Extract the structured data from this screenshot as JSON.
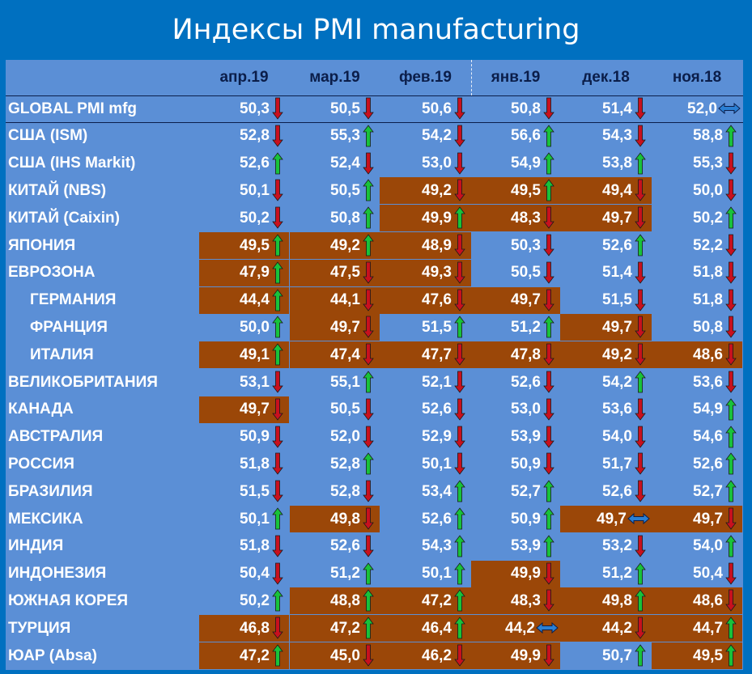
{
  "title": "Индексы PMI manufacturing",
  "colors": {
    "background": "#0070c0",
    "panel": "#5b8fd6",
    "below_50_cell": "#9b4708",
    "arrow_up": "#18c23a",
    "arrow_down": "#c8101e",
    "arrow_flat": "#2a7fd4"
  },
  "chart_data": {
    "type": "table",
    "columns": [
      "апр.19",
      "мар.19",
      "фев.19",
      "янв.19",
      "дек.18",
      "ноя.18"
    ],
    "rows": [
      {
        "label": "GLOBAL PMI mfg",
        "indent": false,
        "values": [
          "50,3",
          "50,5",
          "50,6",
          "50,8",
          "51,4",
          "52,0"
        ],
        "trend": [
          "down",
          "down",
          "down",
          "down",
          "down",
          "flat"
        ],
        "below50": [
          false,
          false,
          false,
          false,
          false,
          false
        ]
      },
      {
        "label": "США (ISM)",
        "indent": false,
        "values": [
          "52,8",
          "55,3",
          "54,2",
          "56,6",
          "54,3",
          "58,8"
        ],
        "trend": [
          "down",
          "up",
          "down",
          "up",
          "down",
          "up"
        ],
        "below50": [
          false,
          false,
          false,
          false,
          false,
          false
        ]
      },
      {
        "label": "США (IHS Markit)",
        "indent": false,
        "values": [
          "52,6",
          "52,4",
          "53,0",
          "54,9",
          "53,8",
          "55,3"
        ],
        "trend": [
          "up",
          "down",
          "down",
          "up",
          "up",
          "down"
        ],
        "below50": [
          false,
          false,
          false,
          false,
          false,
          false
        ]
      },
      {
        "label": "КИТАЙ (NBS)",
        "indent": false,
        "values": [
          "50,1",
          "50,5",
          "49,2",
          "49,5",
          "49,4",
          "50,0"
        ],
        "trend": [
          "down",
          "up",
          "down",
          "up",
          "down",
          "down"
        ],
        "below50": [
          false,
          false,
          true,
          true,
          true,
          false
        ]
      },
      {
        "label": "КИТАЙ (Caixin)",
        "indent": false,
        "values": [
          "50,2",
          "50,8",
          "49,9",
          "48,3",
          "49,7",
          "50,2"
        ],
        "trend": [
          "down",
          "up",
          "up",
          "down",
          "down",
          "up"
        ],
        "below50": [
          false,
          false,
          true,
          true,
          true,
          false
        ]
      },
      {
        "label": "ЯПОНИЯ",
        "indent": false,
        "values": [
          "49,5",
          "49,2",
          "48,9",
          "50,3",
          "52,6",
          "52,2"
        ],
        "trend": [
          "up",
          "up",
          "down",
          "down",
          "up",
          "down"
        ],
        "below50": [
          true,
          true,
          true,
          false,
          false,
          false
        ]
      },
      {
        "label": "ЕВРОЗОНА",
        "indent": false,
        "values": [
          "47,9",
          "47,5",
          "49,3",
          "50,5",
          "51,4",
          "51,8"
        ],
        "trend": [
          "up",
          "down",
          "down",
          "down",
          "down",
          "down"
        ],
        "below50": [
          true,
          true,
          true,
          false,
          false,
          false
        ]
      },
      {
        "label": "ГЕРМАНИЯ",
        "indent": true,
        "values": [
          "44,4",
          "44,1",
          "47,6",
          "49,7",
          "51,5",
          "51,8"
        ],
        "trend": [
          "up",
          "down",
          "down",
          "down",
          "down",
          "down"
        ],
        "below50": [
          true,
          true,
          true,
          true,
          false,
          false
        ]
      },
      {
        "label": "ФРАНЦИЯ",
        "indent": true,
        "values": [
          "50,0",
          "49,7",
          "51,5",
          "51,2",
          "49,7",
          "50,8"
        ],
        "trend": [
          "up",
          "down",
          "up",
          "up",
          "down",
          "down"
        ],
        "below50": [
          false,
          true,
          false,
          false,
          true,
          false
        ]
      },
      {
        "label": "ИТАЛИЯ",
        "indent": true,
        "values": [
          "49,1",
          "47,4",
          "47,7",
          "47,8",
          "49,2",
          "48,6"
        ],
        "trend": [
          "up",
          "down",
          "down",
          "down",
          "down",
          "down"
        ],
        "below50": [
          true,
          true,
          true,
          true,
          true,
          true
        ]
      },
      {
        "label": "ВЕЛИКОБРИТАНИЯ",
        "indent": false,
        "values": [
          "53,1",
          "55,1",
          "52,1",
          "52,6",
          "54,2",
          "53,6"
        ],
        "trend": [
          "down",
          "up",
          "down",
          "down",
          "up",
          "down"
        ],
        "below50": [
          false,
          false,
          false,
          false,
          false,
          false
        ]
      },
      {
        "label": "КАНАДА",
        "indent": false,
        "values": [
          "49,7",
          "50,5",
          "52,6",
          "53,0",
          "53,6",
          "54,9"
        ],
        "trend": [
          "down",
          "down",
          "down",
          "down",
          "down",
          "up"
        ],
        "below50": [
          true,
          false,
          false,
          false,
          false,
          false
        ]
      },
      {
        "label": "АВСТРАЛИЯ",
        "indent": false,
        "values": [
          "50,9",
          "52,0",
          "52,9",
          "53,9",
          "54,0",
          "54,6"
        ],
        "trend": [
          "down",
          "down",
          "down",
          "down",
          "down",
          "up"
        ],
        "below50": [
          false,
          false,
          false,
          false,
          false,
          false
        ]
      },
      {
        "label": "РОССИЯ",
        "indent": false,
        "values": [
          "51,8",
          "52,8",
          "50,1",
          "50,9",
          "51,7",
          "52,6"
        ],
        "trend": [
          "down",
          "up",
          "down",
          "down",
          "down",
          "up"
        ],
        "below50": [
          false,
          false,
          false,
          false,
          false,
          false
        ]
      },
      {
        "label": "БРАЗИЛИЯ",
        "indent": false,
        "values": [
          "51,5",
          "52,8",
          "53,4",
          "52,7",
          "52,6",
          "52,7"
        ],
        "trend": [
          "down",
          "down",
          "up",
          "up",
          "down",
          "up"
        ],
        "below50": [
          false,
          false,
          false,
          false,
          false,
          false
        ]
      },
      {
        "label": "МЕКСИКА",
        "indent": false,
        "values": [
          "50,1",
          "49,8",
          "52,6",
          "50,9",
          "49,7",
          "49,7"
        ],
        "trend": [
          "up",
          "down",
          "up",
          "up",
          "flat",
          "down"
        ],
        "below50": [
          false,
          true,
          false,
          false,
          true,
          true
        ]
      },
      {
        "label": "ИНДИЯ",
        "indent": false,
        "values": [
          "51,8",
          "52,6",
          "54,3",
          "53,9",
          "53,2",
          "54,0"
        ],
        "trend": [
          "down",
          "down",
          "up",
          "up",
          "down",
          "up"
        ],
        "below50": [
          false,
          false,
          false,
          false,
          false,
          false
        ]
      },
      {
        "label": "ИНДОНЕЗИЯ",
        "indent": false,
        "values": [
          "50,4",
          "51,2",
          "50,1",
          "49,9",
          "51,2",
          "50,4"
        ],
        "trend": [
          "down",
          "up",
          "up",
          "down",
          "up",
          "down"
        ],
        "below50": [
          false,
          false,
          false,
          true,
          false,
          false
        ]
      },
      {
        "label": "ЮЖНАЯ КОРЕЯ",
        "indent": false,
        "values": [
          "50,2",
          "48,8",
          "47,2",
          "48,3",
          "49,8",
          "48,6"
        ],
        "trend": [
          "up",
          "up",
          "up",
          "down",
          "up",
          "down"
        ],
        "below50": [
          false,
          true,
          true,
          true,
          true,
          true
        ]
      },
      {
        "label": "ТУРЦИЯ",
        "indent": false,
        "values": [
          "46,8",
          "47,2",
          "46,4",
          "44,2",
          "44,2",
          "44,7"
        ],
        "trend": [
          "down",
          "up",
          "up",
          "flat",
          "down",
          "up"
        ],
        "below50": [
          true,
          true,
          true,
          true,
          true,
          true
        ]
      },
      {
        "label": "ЮАР (Absa)",
        "indent": false,
        "values": [
          "47,2",
          "45,0",
          "46,2",
          "49,9",
          "50,7",
          "49,5"
        ],
        "trend": [
          "up",
          "down",
          "down",
          "down",
          "up",
          "up"
        ],
        "below50": [
          true,
          true,
          true,
          true,
          false,
          true
        ]
      }
    ]
  }
}
